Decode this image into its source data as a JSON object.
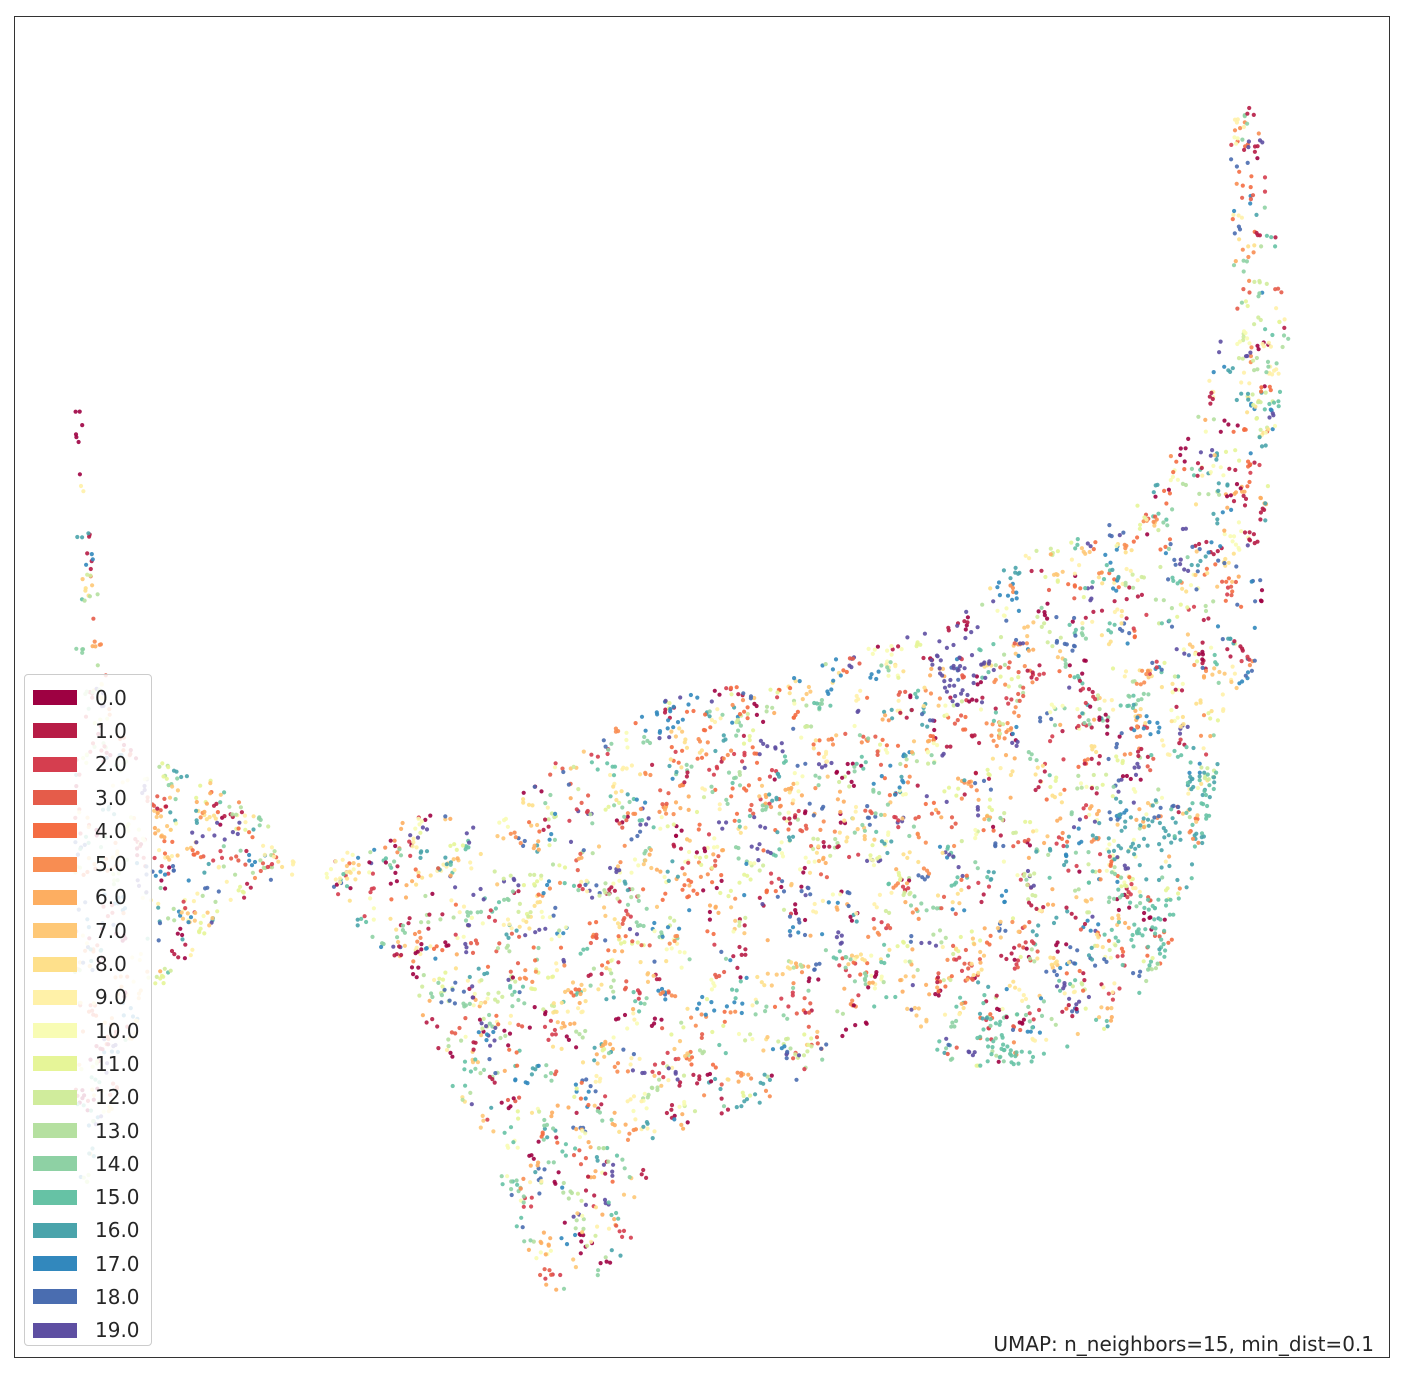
{
  "chart_data": {
    "type": "scatter",
    "title": "",
    "xlabel": "",
    "ylabel": "",
    "axes_visible": false,
    "grid": false,
    "legend_position": "lower-left",
    "colormap": "Spectral",
    "annotation": "UMAP: n_neighbors=15, min_dist=0.1",
    "x_range": [
      0,
      100
    ],
    "y_range": [
      0,
      100
    ],
    "point_count": 6000,
    "series": [
      {
        "label": "0.0",
        "color": "#9e0142"
      },
      {
        "label": "1.0",
        "color": "#b71c46"
      },
      {
        "label": "2.0",
        "color": "#d53e4f"
      },
      {
        "label": "3.0",
        "color": "#e55c4a"
      },
      {
        "label": "4.0",
        "color": "#f46d43"
      },
      {
        "label": "5.0",
        "color": "#f88d52"
      },
      {
        "label": "6.0",
        "color": "#fdae61"
      },
      {
        "label": "7.0",
        "color": "#fec877"
      },
      {
        "label": "8.0",
        "color": "#fee08b"
      },
      {
        "label": "9.0",
        "color": "#fff1a8"
      },
      {
        "label": "10.0",
        "color": "#f8fcb4"
      },
      {
        "label": "11.0",
        "color": "#e6f598"
      },
      {
        "label": "12.0",
        "color": "#d0ec9c"
      },
      {
        "label": "13.0",
        "color": "#b5e0a0"
      },
      {
        "label": "14.0",
        "color": "#8ed1a4"
      },
      {
        "label": "15.0",
        "color": "#66c2a5"
      },
      {
        "label": "16.0",
        "color": "#4aa4ab"
      },
      {
        "label": "17.0",
        "color": "#3288bd"
      },
      {
        "label": "18.0",
        "color": "#4a6db0"
      },
      {
        "label": "19.0",
        "color": "#5e4fa2"
      }
    ],
    "region_outline": [
      [
        0,
        5
      ],
      [
        5,
        22
      ],
      [
        12,
        32
      ],
      [
        20,
        36
      ],
      [
        28,
        40
      ],
      [
        33,
        39
      ],
      [
        38,
        44
      ],
      [
        42,
        46
      ],
      [
        47,
        49
      ],
      [
        52,
        50
      ],
      [
        55,
        50
      ],
      [
        58,
        51
      ],
      [
        60,
        52
      ],
      [
        62,
        53
      ],
      [
        66,
        54
      ],
      [
        70,
        55
      ],
      [
        74,
        60
      ],
      [
        78,
        62
      ],
      [
        82,
        63
      ],
      [
        86,
        67
      ],
      [
        90,
        74
      ],
      [
        92,
        82
      ],
      [
        92,
        96
      ],
      [
        94,
        100
      ],
      [
        95,
        91
      ],
      [
        97,
        77
      ],
      [
        96,
        74
      ],
      [
        95,
        63
      ],
      [
        95,
        58
      ],
      [
        94,
        51
      ],
      [
        92,
        48
      ],
      [
        90,
        38
      ],
      [
        88,
        31
      ],
      [
        86,
        26
      ],
      [
        82,
        22
      ],
      [
        76,
        19
      ],
      [
        70,
        19
      ],
      [
        66,
        23
      ],
      [
        62,
        22
      ],
      [
        58,
        18
      ],
      [
        55,
        16
      ],
      [
        51,
        15
      ],
      [
        47,
        13
      ],
      [
        44,
        4
      ],
      [
        42,
        2
      ],
      [
        38,
        0
      ],
      [
        35,
        6
      ],
      [
        32,
        12
      ],
      [
        29,
        20
      ],
      [
        26,
        27
      ],
      [
        22,
        31
      ],
      [
        18,
        37
      ],
      [
        14,
        40
      ],
      [
        10,
        43
      ],
      [
        6,
        44
      ],
      [
        3,
        47
      ],
      [
        2,
        55
      ],
      [
        1,
        68
      ],
      [
        0,
        76
      ],
      [
        0,
        90
      ]
    ],
    "clusters": [
      {
        "class_index": 0,
        "centers": [
          [
            0.5,
            91
          ],
          [
            2,
            88
          ],
          [
            1,
            70
          ],
          [
            14,
            84
          ],
          [
            46,
            86
          ],
          [
            49,
            85
          ]
        ]
      },
      {
        "class_index": 17,
        "centers": [
          [
            8,
            73
          ],
          [
            12,
            70
          ],
          [
            17,
            63
          ],
          [
            21,
            62
          ],
          [
            5,
            80
          ],
          [
            48,
            50
          ]
        ]
      },
      {
        "class_index": 16,
        "centers": [
          [
            85,
            38
          ],
          [
            90,
            35
          ],
          [
            93,
            25
          ],
          [
            88,
            27
          ],
          [
            92,
            42
          ]
        ]
      },
      {
        "class_index": 15,
        "centers": [
          [
            83,
            18
          ],
          [
            86,
            30
          ],
          [
            91,
            40
          ],
          [
            74,
            20
          ]
        ]
      },
      {
        "class_index": 19,
        "centers": [
          [
            43,
            50
          ],
          [
            70,
            52
          ],
          [
            48,
            52
          ],
          [
            13,
            70
          ]
        ]
      }
    ]
  }
}
